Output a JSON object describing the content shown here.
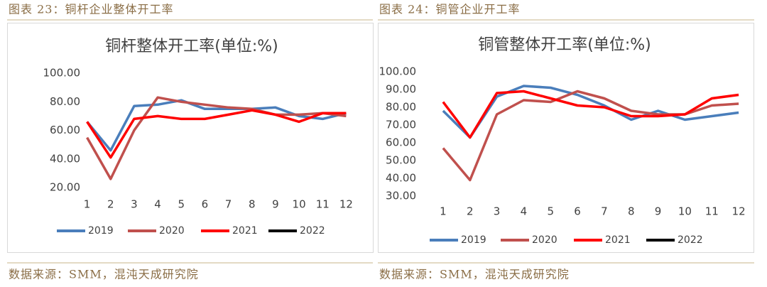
{
  "chart_data": [
    {
      "type": "line",
      "caption": "图表 23：铜杆企业整体开工率",
      "title": "铜杆整体开工率(单位:%)",
      "source": "数据来源：SMM，混沌天成研究院",
      "categories": [
        "1",
        "2",
        "3",
        "4",
        "5",
        "6",
        "7",
        "8",
        "9",
        "10",
        "11",
        "12"
      ],
      "series": [
        {
          "name": "2019",
          "color": "#4a7ebb",
          "values": [
            66,
            46,
            77,
            78,
            81,
            75,
            75,
            75,
            76,
            70,
            68,
            72
          ]
        },
        {
          "name": "2020",
          "color": "#c0504d",
          "values": [
            55,
            26,
            60,
            83,
            80,
            78,
            76,
            75,
            71,
            71,
            72,
            70
          ]
        },
        {
          "name": "2021",
          "color": "#ff0000",
          "values": [
            66,
            41,
            68,
            70,
            68,
            68,
            71,
            74,
            71,
            66,
            72,
            72
          ]
        },
        {
          "name": "2022",
          "color": "#000000",
          "values": [
            null,
            null,
            null,
            null,
            null,
            null,
            null,
            null,
            null,
            null,
            null,
            null
          ]
        }
      ],
      "ylim": [
        20,
        100
      ],
      "yticks": [
        {
          "value": 100,
          "label": "100.00"
        },
        {
          "value": 80,
          "label": "80.00"
        },
        {
          "value": 60,
          "label": "60.00"
        },
        {
          "value": 40,
          "label": "40.00"
        },
        {
          "value": 20,
          "label": "20.00"
        }
      ],
      "grid": false,
      "legend": "bottom"
    },
    {
      "type": "line",
      "caption": "图表 24：铜管企业开工率",
      "title": "铜管整体开工率(单位:%)",
      "source": "数据来源：SMM，混沌天成研究院",
      "categories": [
        "1",
        "2",
        "3",
        "4",
        "5",
        "6",
        "7",
        "8",
        "9",
        "10",
        "11",
        "12"
      ],
      "series": [
        {
          "name": "2019",
          "color": "#4a7ebb",
          "values": [
            78,
            63,
            86,
            92,
            91,
            87,
            81,
            73,
            78,
            73,
            75,
            77
          ]
        },
        {
          "name": "2020",
          "color": "#c0504d",
          "values": [
            57,
            39,
            76,
            84,
            83,
            89,
            85,
            78,
            76,
            76,
            81,
            82
          ]
        },
        {
          "name": "2021",
          "color": "#ff0000",
          "values": [
            83,
            63,
            88,
            89,
            85,
            81,
            80,
            75,
            75,
            76,
            85,
            87
          ]
        },
        {
          "name": "2022",
          "color": "#000000",
          "values": [
            null,
            null,
            null,
            null,
            null,
            null,
            null,
            null,
            null,
            null,
            null,
            null
          ]
        }
      ],
      "ylim": [
        30,
        100
      ],
      "yticks": [
        {
          "value": 100,
          "label": "100.00"
        },
        {
          "value": 90,
          "label": "90.00"
        },
        {
          "value": 80,
          "label": "80.00"
        },
        {
          "value": 70,
          "label": "70.00"
        },
        {
          "value": 60,
          "label": "60.00"
        },
        {
          "value": 50,
          "label": "50.00"
        },
        {
          "value": 40,
          "label": "40.00"
        },
        {
          "value": 30,
          "label": "30.00"
        }
      ],
      "grid": false,
      "legend": "bottom"
    }
  ]
}
